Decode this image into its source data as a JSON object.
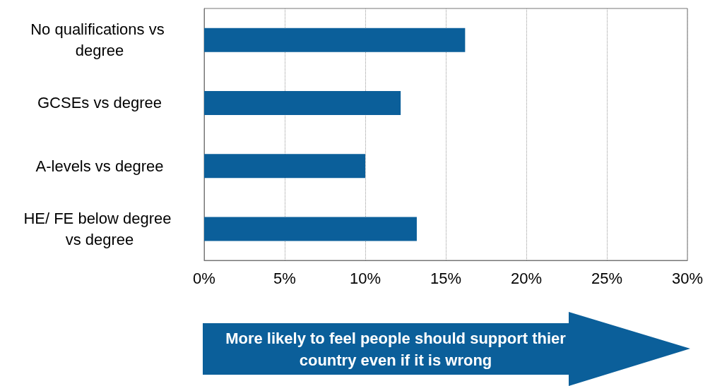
{
  "chart_data": {
    "type": "bar",
    "orientation": "horizontal",
    "categories": [
      "No qualifications vs degree",
      "GCSEs vs degree",
      "A-levels vs degree",
      "HE/ FE below degree vs degree"
    ],
    "values": [
      16.2,
      12.2,
      10.0,
      13.2
    ],
    "color": "#0b5f9a",
    "xlim": [
      0,
      30
    ],
    "xticks": [
      {
        "value": 0,
        "label": "0%"
      },
      {
        "value": 5,
        "label": "5%"
      },
      {
        "value": 10,
        "label": "10%"
      },
      {
        "value": 15,
        "label": "15%"
      },
      {
        "value": 20,
        "label": "20%"
      },
      {
        "value": 25,
        "label": "25%"
      },
      {
        "value": 30,
        "label": "30%"
      }
    ],
    "grid": "x",
    "annotations": [
      "More likely to feel people should support thier country even if it is wrong"
    ]
  }
}
